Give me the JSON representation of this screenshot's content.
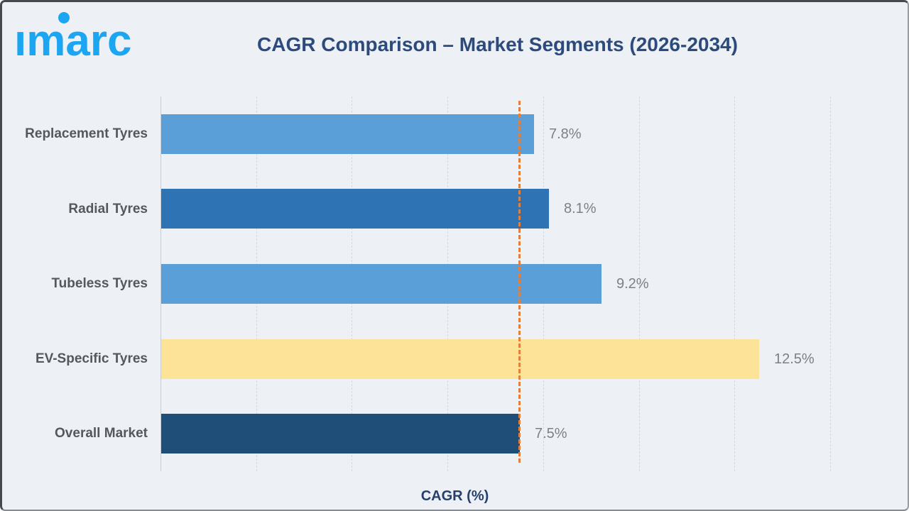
{
  "header": {
    "logo_text": "imarc",
    "title": "CAGR Comparison – Market Segments (2026-2034)"
  },
  "chart_data": {
    "type": "bar",
    "orientation": "horizontal",
    "title": "CAGR Comparison – Market Segments (2026-2034)",
    "categories": [
      "Replacement Tyres",
      "Radial Tyres",
      "Tubeless Tyres",
      "EV-Specific Tyres",
      "Overall Market"
    ],
    "values": [
      7.8,
      8.1,
      9.2,
      12.5,
      7.5
    ],
    "value_labels": [
      "7.8%",
      "8.1%",
      "9.2%",
      "12.5%",
      "7.5%"
    ],
    "bar_colors": [
      "#5b9fd8",
      "#2e74b5",
      "#5b9fd8",
      "#fce398",
      "#1f4e79"
    ],
    "xlabel": "CAGR (%)",
    "ylabel": "",
    "xlim": [
      0,
      15.5
    ],
    "gridline_values": [
      2,
      4,
      6,
      8,
      10,
      12,
      14
    ],
    "grid": true,
    "legend": false,
    "reference_line": {
      "value": 7.5,
      "style": "dashed",
      "color": "#e5803a"
    }
  },
  "colors": {
    "background": "#edf0f5",
    "logo_blue": "#1ca6f2",
    "title_navy": "#2c4a7c",
    "category_label": "#54585e",
    "value_label": "#7d8186",
    "gridline": "#d4d8de",
    "reference_orange": "#e5803a"
  }
}
